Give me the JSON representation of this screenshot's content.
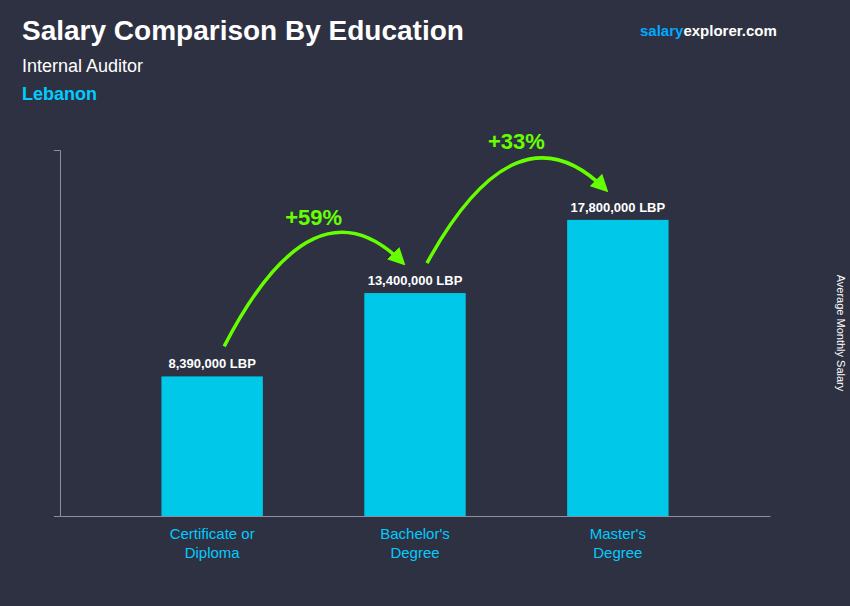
{
  "chart_data": {
    "type": "bar",
    "title": "Salary Comparison By Education",
    "subtitle": "Internal Auditor",
    "subtitle2": "Lebanon",
    "watermark": [
      "salary",
      "explorer.com"
    ],
    "ylabel": "Average Monthly Salary",
    "categories": [
      "Certificate or\nDiploma",
      "Bachelor's\nDegree",
      "Master's\nDegree"
    ],
    "values": [
      8390000,
      13400000,
      17800000
    ],
    "value_labels": [
      "8,390,000 LBP",
      "13,400,000 LBP",
      "17,800,000 LBP"
    ],
    "data_labels": true,
    "annotations": [
      "+59%",
      "+33%"
    ],
    "color": "#00c8e8",
    "ylim": [
      0,
      22000000
    ],
    "yticks": [],
    "tick_labels": "x",
    "grid": false
  }
}
